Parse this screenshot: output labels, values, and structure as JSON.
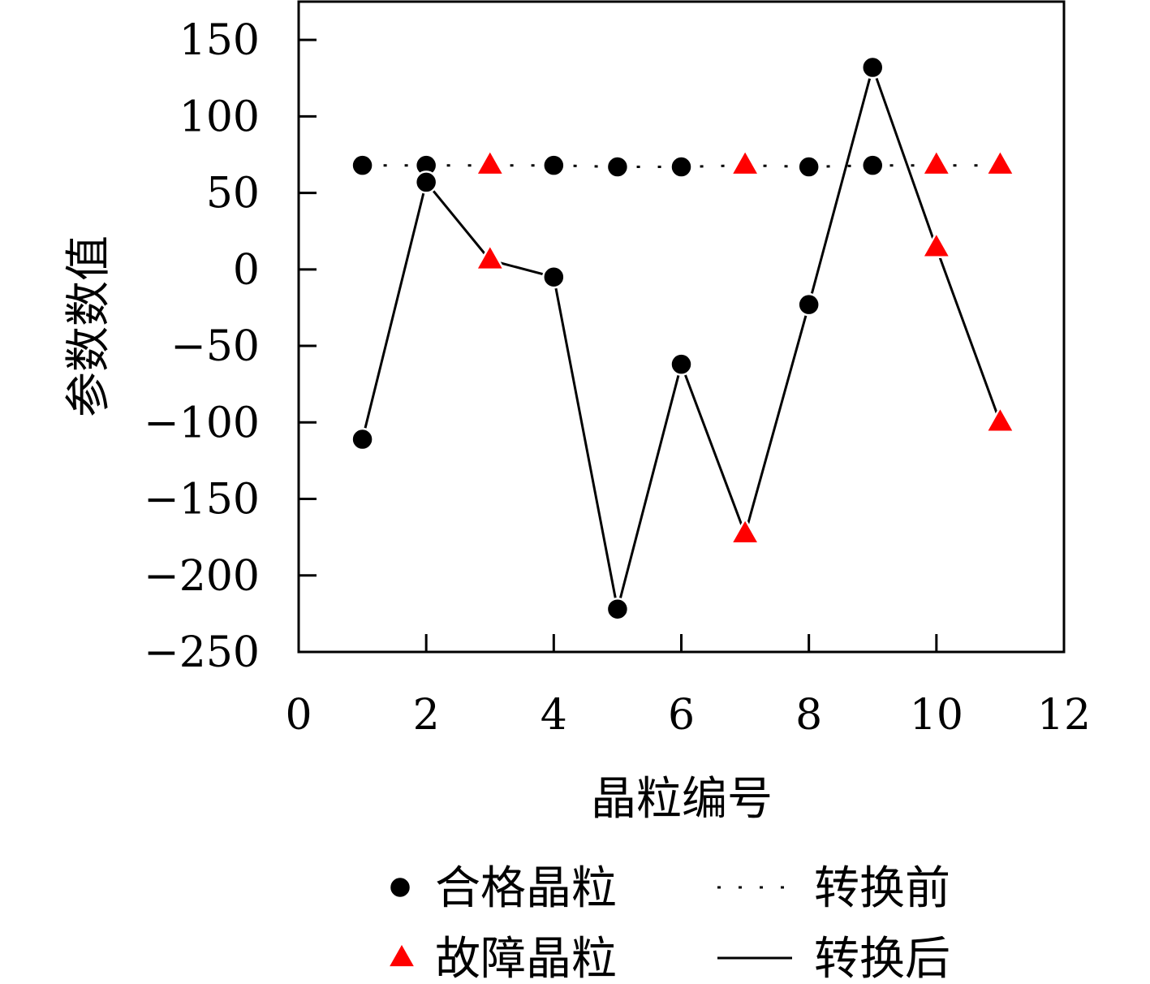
{
  "chart_data": {
    "type": "line",
    "title": "",
    "xlabel": "晶粒编号",
    "ylabel": "参数数值",
    "xlim": [
      0,
      12
    ],
    "ylim": [
      -250,
      175
    ],
    "xticks": [
      0,
      2,
      4,
      6,
      8,
      10,
      12
    ],
    "yticks": [
      -250,
      -200,
      -150,
      -100,
      -50,
      0,
      50,
      100,
      150
    ],
    "xtick_labels": [
      "0",
      "2",
      "4",
      "6",
      "8",
      "10",
      "12"
    ],
    "ytick_labels": [
      "−250",
      "−200",
      "−150",
      "−100",
      "−50",
      "0",
      "50",
      "100",
      "150"
    ],
    "grid": false,
    "legend_position": "bottom",
    "series": [
      {
        "name": "转换前",
        "line_style": "dotted",
        "x": [
          1,
          2,
          3,
          4,
          5,
          6,
          7,
          8,
          9,
          10,
          11
        ],
        "y": [
          68,
          68,
          68,
          68,
          67,
          67,
          68,
          67,
          68,
          68,
          68
        ]
      },
      {
        "name": "转换后",
        "line_style": "solid",
        "x": [
          1,
          2,
          3,
          4,
          5,
          6,
          7,
          8,
          9,
          10,
          11
        ],
        "y": [
          -111,
          57,
          6,
          -5,
          -222,
          -62,
          -173,
          -23,
          132,
          14,
          -100
        ]
      }
    ],
    "point_status": [
      "合格晶粒",
      "合格晶粒",
      "故障晶粒",
      "合格晶粒",
      "合格晶粒",
      "合格晶粒",
      "故障晶粒",
      "合格晶粒",
      "合格晶粒",
      "故障晶粒",
      "故障晶粒"
    ],
    "legend": {
      "markers": [
        {
          "label": "合格晶粒",
          "shape": "circle",
          "color": "#000000"
        },
        {
          "label": "故障晶粒",
          "shape": "triangle",
          "color": "#ff0000"
        }
      ],
      "lines": [
        {
          "label": "转换前",
          "style": "dotted"
        },
        {
          "label": "转换后",
          "style": "solid"
        }
      ]
    },
    "colors": {
      "qualified": "#000000",
      "faulty": "#ff0000",
      "line": "#000000"
    }
  }
}
